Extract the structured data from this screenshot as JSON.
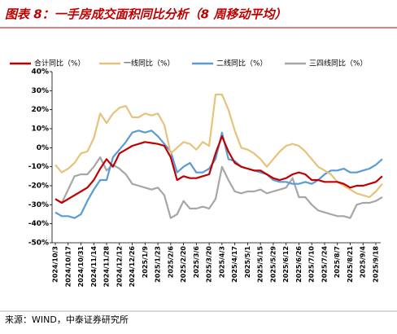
{
  "chart_data": {
    "type": "line",
    "title": "图表 8：一手房成交面积同比分析（8 周移动平均）",
    "source": "来源：WIND，中泰证券研究所",
    "categories": [
      "2024/10/3",
      null,
      "2024/10/17",
      null,
      "2024/10/31",
      null,
      "2024/11/14",
      null,
      "2024/11/28",
      null,
      "2024/12/12",
      null,
      "2024/12/26",
      null,
      "2025/1/9",
      null,
      "2025/1/23",
      null,
      "2025/2/6",
      null,
      "2025/2/20",
      null,
      "2025/3/6",
      null,
      "2025/3/20",
      null,
      "2025/4/3",
      null,
      "2025/4/17",
      null,
      "2025/5/1",
      null,
      "2025/5/15",
      null,
      "2025/5/29",
      null,
      "2025/6/12",
      null,
      "2025/6/26",
      null,
      "2025/7/10",
      null,
      "2025/7/24",
      null,
      "2025/8/7",
      null,
      "2025/8/21",
      null,
      "2025/9/4",
      null,
      "2025/9/18",
      null
    ],
    "series": [
      {
        "name": "合计同比（%）",
        "color": "#c00000",
        "values": [
          -27,
          -29,
          -27,
          -25,
          -23,
          -21,
          -17,
          -11,
          -6,
          -10,
          -3,
          -1,
          1,
          2,
          3,
          2.5,
          2,
          1,
          -5,
          -17,
          -15,
          -16,
          -16,
          -15,
          -14,
          -3,
          6,
          -2,
          -8,
          -10,
          -11,
          -12,
          -12,
          -14,
          -16,
          -17,
          -16,
          -14,
          -13,
          -14,
          -17,
          -17,
          -18,
          -18,
          -18,
          -19,
          -21,
          -20,
          -20,
          -19,
          -18,
          -15
        ]
      },
      {
        "name": "一线同比（%）",
        "color": "#e6c27a",
        "values": [
          -9,
          -13,
          -11,
          -8,
          -3,
          -2,
          5,
          18,
          13,
          18,
          21,
          22,
          16,
          16,
          18,
          17,
          18,
          12,
          -3,
          0,
          3,
          2,
          -1,
          3,
          1,
          28,
          28,
          20,
          9,
          0,
          -1,
          -3,
          -6,
          -10,
          -6,
          -2,
          1,
          2,
          1,
          -2,
          -6,
          -10,
          -12,
          -14,
          -18,
          -20,
          -22,
          -24,
          -25,
          -26,
          -23,
          -19
        ]
      },
      {
        "name": "二线同比（%）",
        "color": "#5b9bd5",
        "values": [
          -34,
          -36,
          -36,
          -37,
          -35,
          -28,
          -22,
          -17,
          -17,
          -5,
          -1,
          3,
          8,
          9,
          8,
          9,
          6,
          2,
          -2,
          -13,
          -10,
          -8,
          -13,
          -13,
          -11,
          -6,
          8,
          -6,
          -7,
          -10,
          -11,
          -12,
          -13,
          -14,
          -17,
          -18,
          -18,
          -19,
          -19,
          -18,
          -19,
          -17,
          -14,
          -12,
          -12,
          -11,
          -13,
          -13,
          -12,
          -11,
          -9,
          -6
        ]
      },
      {
        "name": "三四线同比（%）",
        "color": "#a6a6a6",
        "values": [
          -27,
          -29,
          -22,
          -15,
          -14,
          -14,
          -10,
          -5,
          -12,
          -9,
          -11,
          -14,
          -19,
          -20,
          -21,
          -22,
          -21,
          -25,
          -37,
          -35,
          -28,
          -32,
          -32,
          -31,
          -32,
          -27,
          -10,
          -17,
          -23,
          -24,
          -23,
          -23,
          -22,
          -24,
          -23,
          -22,
          -21,
          -16,
          -26,
          -26,
          -30,
          -33,
          -34,
          -35,
          -36,
          -36,
          -37,
          -30,
          -29,
          -29,
          -28,
          -26
        ]
      }
    ],
    "ylim": [
      -50,
      40
    ],
    "yticks": [
      {
        "value": -50,
        "label": "-50%"
      },
      {
        "value": -40,
        "label": "-40%"
      },
      {
        "value": -30,
        "label": "-30%"
      },
      {
        "value": -20,
        "label": "-20%"
      },
      {
        "value": -10,
        "label": "-10%"
      },
      {
        "value": 0,
        "label": "0%"
      },
      {
        "value": 10,
        "label": "10%"
      },
      {
        "value": 20,
        "label": "20%"
      },
      {
        "value": 30,
        "label": "30%"
      },
      {
        "value": 40,
        "label": "40%"
      }
    ]
  }
}
